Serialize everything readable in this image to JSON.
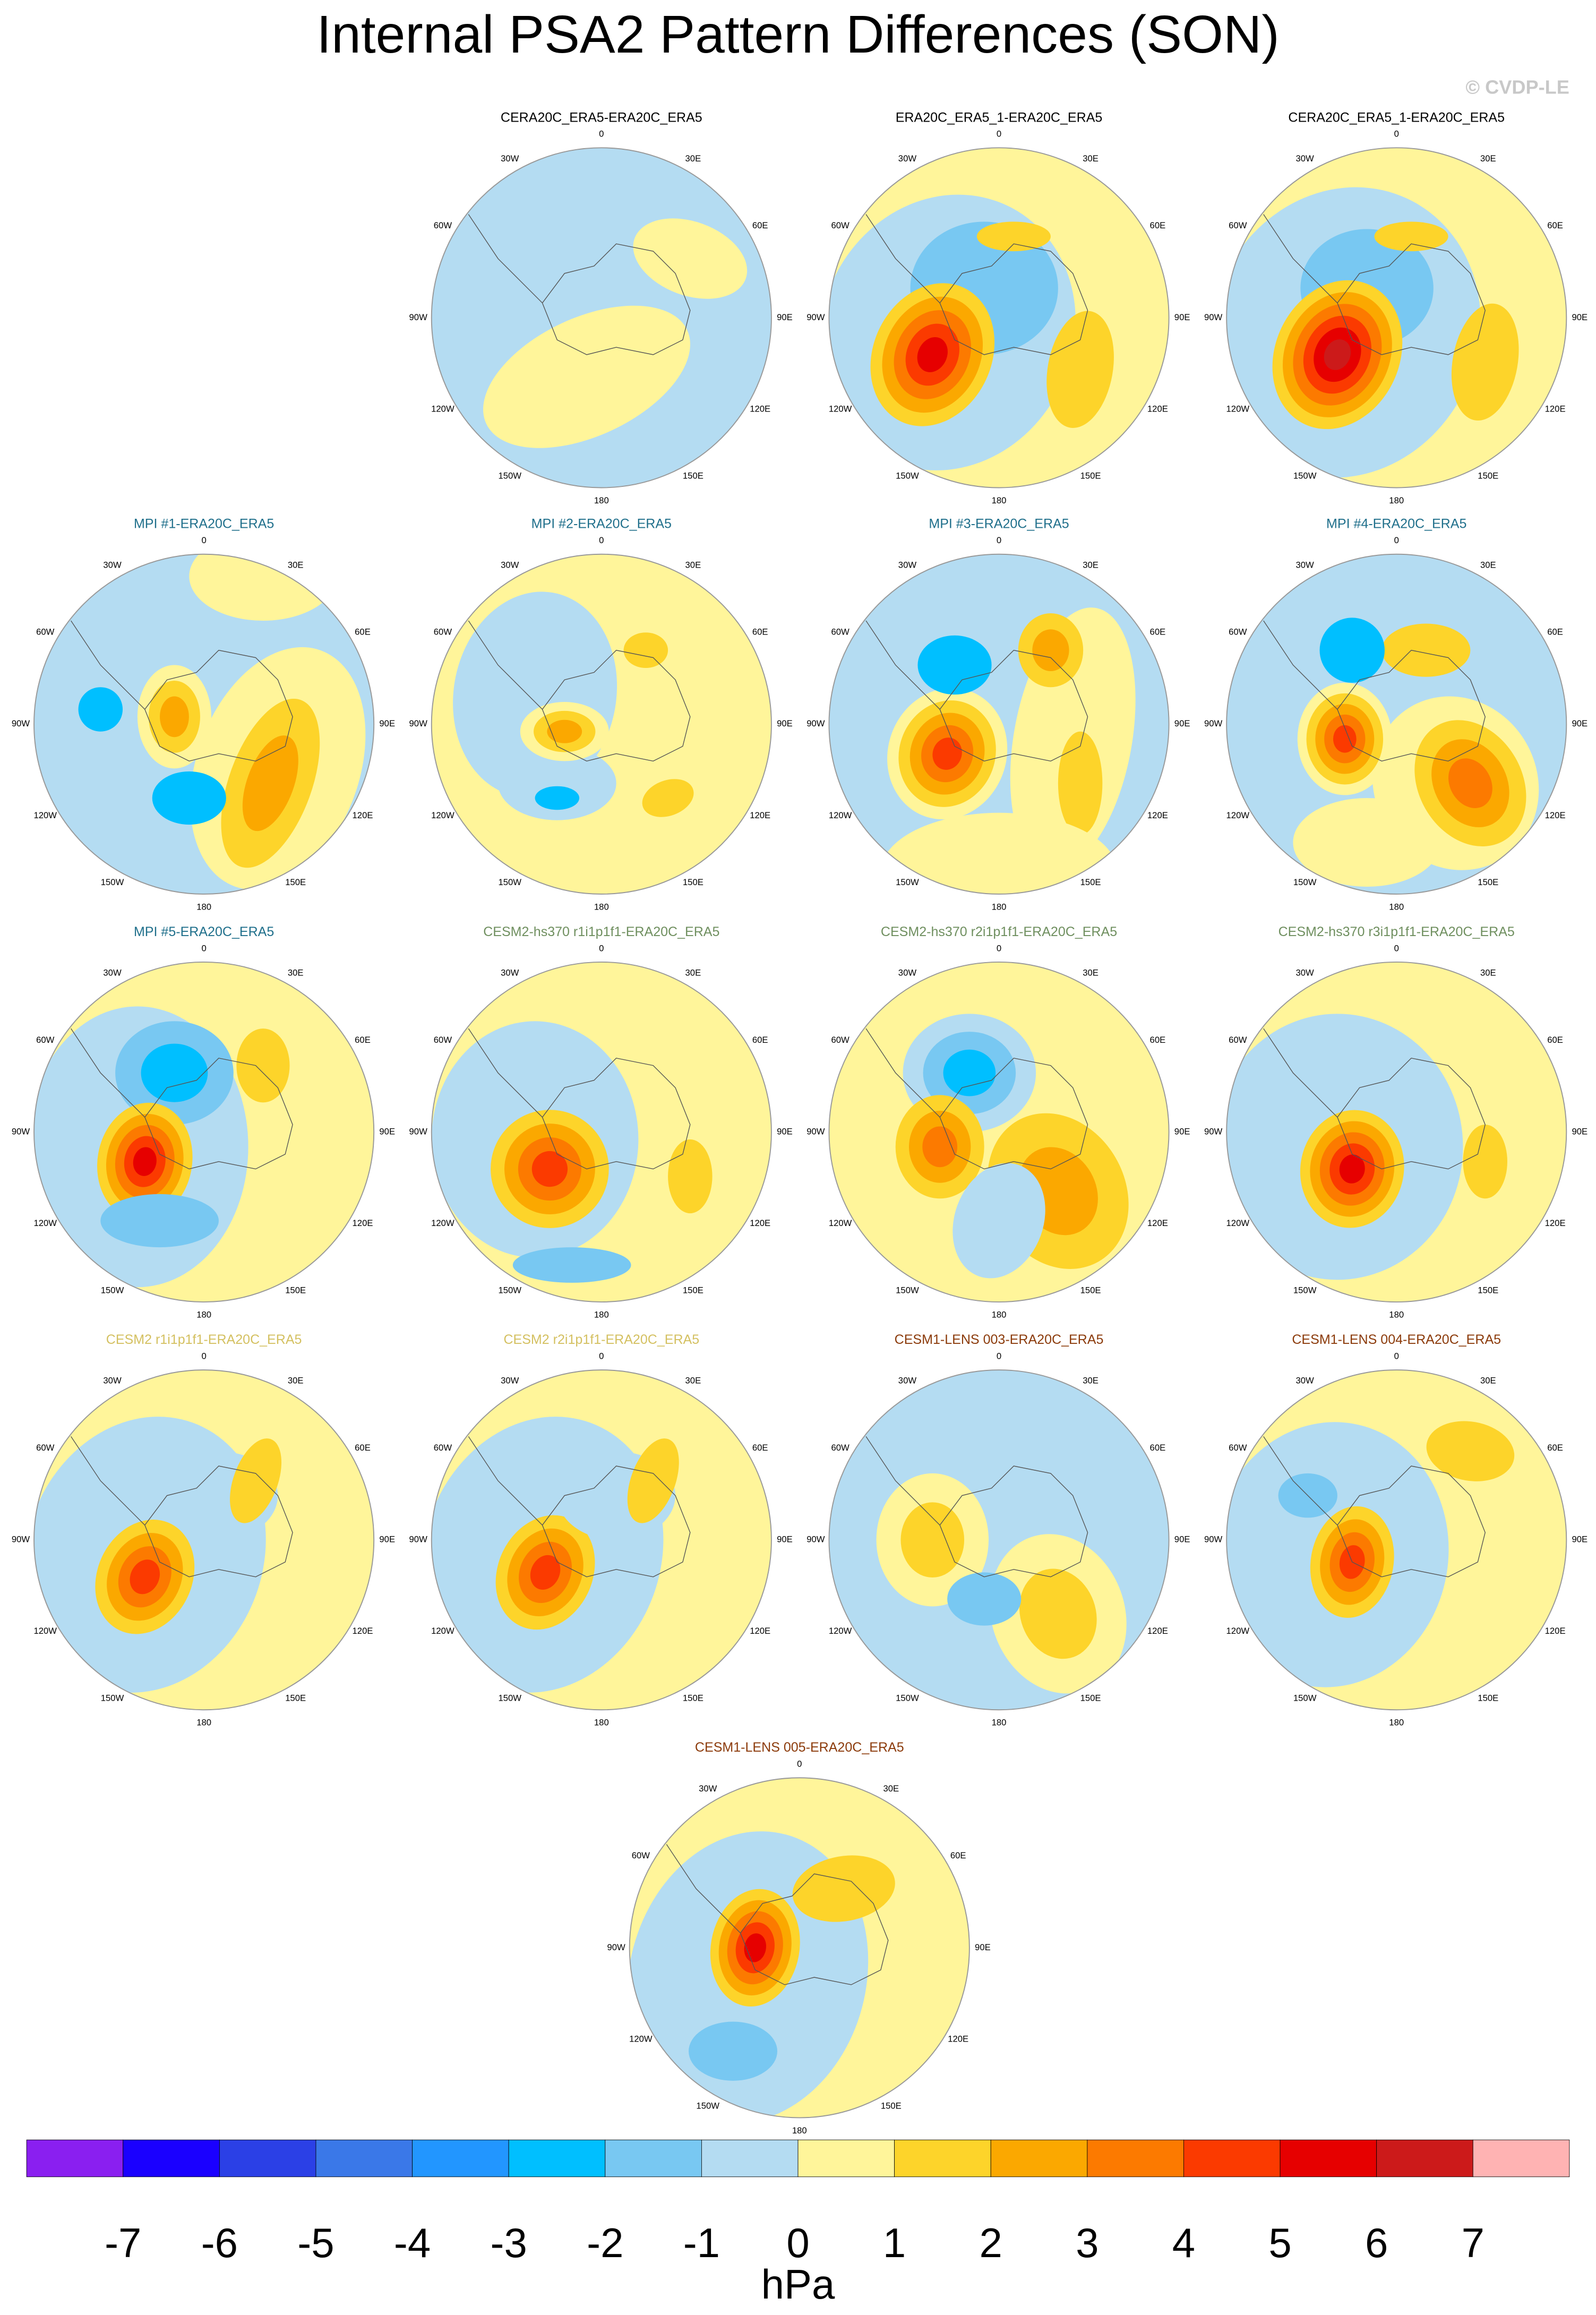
{
  "title": "Internal PSA2 Pattern Differences (SON)",
  "credit": "© CVDP-LE",
  "lon_labels": [
    "0",
    "30E",
    "60E",
    "90E",
    "120E",
    "150E",
    "180",
    "150W",
    "120W",
    "90W",
    "60W",
    "30W"
  ],
  "panels": [
    {
      "title": "CERA20C_ERA5-ERA20C_ERA5",
      "color": "#000000"
    },
    {
      "title": "ERA20C_ERA5_1-ERA20C_ERA5",
      "color": "#000000"
    },
    {
      "title": "CERA20C_ERA5_1-ERA20C_ERA5",
      "color": "#000000"
    },
    {
      "title": "MPI #1-ERA20C_ERA5",
      "color": "#1f6f8b"
    },
    {
      "title": "MPI #2-ERA20C_ERA5",
      "color": "#1f6f8b"
    },
    {
      "title": "MPI #3-ERA20C_ERA5",
      "color": "#1f6f8b"
    },
    {
      "title": "MPI #4-ERA20C_ERA5",
      "color": "#1f6f8b"
    },
    {
      "title": "MPI #5-ERA20C_ERA5",
      "color": "#1f6f8b"
    },
    {
      "title": "CESM2-hs370 r1i1p1f1-ERA20C_ERA5",
      "color": "#6f8f5f"
    },
    {
      "title": "CESM2-hs370 r2i1p1f1-ERA20C_ERA5",
      "color": "#6f8f5f"
    },
    {
      "title": "CESM2-hs370 r3i1p1f1-ERA20C_ERA5",
      "color": "#6f8f5f"
    },
    {
      "title": "CESM2 r1i1p1f1-ERA20C_ERA5",
      "color": "#d4c060"
    },
    {
      "title": "CESM2 r2i1p1f1-ERA20C_ERA5",
      "color": "#d4c060"
    },
    {
      "title": "CESM1-LENS 003-ERA20C_ERA5",
      "color": "#8b3a0a"
    },
    {
      "title": "CESM1-LENS 004-ERA20C_ERA5",
      "color": "#8b3a0a"
    },
    {
      "title": "CESM1-LENS 005-ERA20C_ERA5",
      "color": "#8b3a0a"
    }
  ],
  "colorbar": {
    "colors": [
      "#8a1ff0",
      "#1a00ff",
      "#2b40e6",
      "#3a78e8",
      "#2296ff",
      "#00bfff",
      "#78c8f2",
      "#b4dcf2",
      "#fff59a",
      "#fdd42a",
      "#fba800",
      "#fc7a00",
      "#fb3a00",
      "#e60000",
      "#cc1a1a",
      "#ffb3b3"
    ],
    "ticks": [
      -7,
      -6,
      -5,
      -4,
      -3,
      -2,
      -1,
      0,
      1,
      2,
      3,
      4,
      5,
      6,
      7
    ],
    "units": "hPa"
  }
}
